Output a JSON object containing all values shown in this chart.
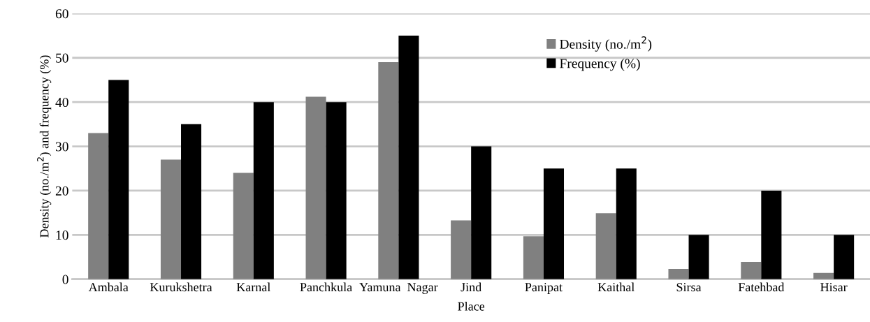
{
  "chart_data": {
    "type": "bar",
    "xlabel": "Place",
    "ylabel": "Density (no./m$^{2}$) and frequency (%)",
    "categories": [
      "Ambala",
      "Kurukshetra",
      "Karnal",
      "Panchkula",
      "Yamuna  Nagar",
      "Jind",
      "Panipat",
      "Kaithal",
      "Sirsa",
      "Fatehbad",
      "Hisar"
    ],
    "series": [
      {
        "name": "Density (no./m$^{2}$)",
        "color": "#808080",
        "values": [
          33,
          27,
          24,
          41.2,
          49,
          13.3,
          9.7,
          14.9,
          2.3,
          3.9,
          1.4
        ]
      },
      {
        "name": "Frequency (%)",
        "color": "#000000",
        "values": [
          45,
          35,
          40,
          40,
          55,
          30,
          25,
          25,
          10,
          20,
          10
        ]
      }
    ],
    "ylim": [
      0,
      60
    ],
    "yticks": [
      0,
      10,
      20,
      30,
      40,
      50,
      60
    ],
    "grid": "y",
    "legend": "top"
  }
}
